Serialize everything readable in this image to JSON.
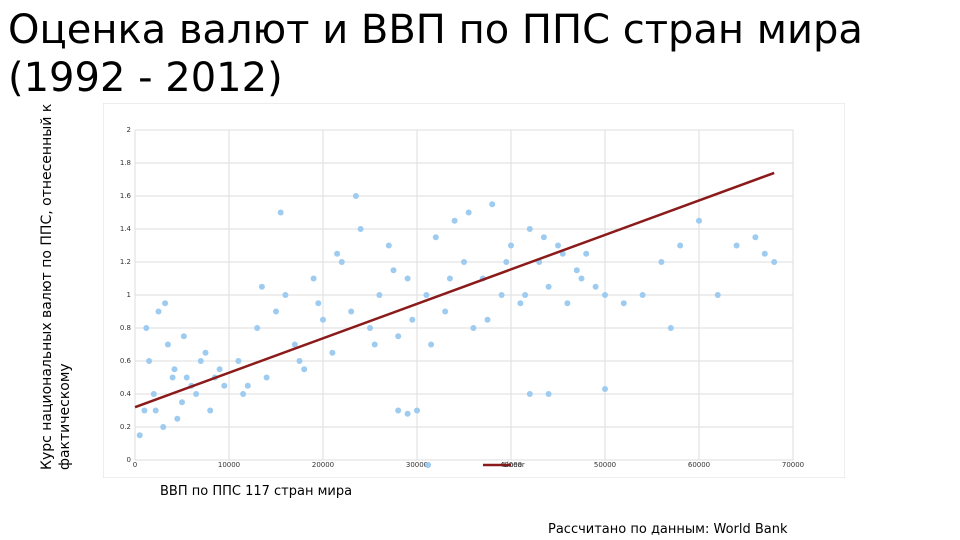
{
  "title": "Оценка валют и ВВП по ППС стран мира (1992 - 2012)",
  "source": "Рассчитано по данным: World Bank",
  "chart_data": {
    "type": "scatter",
    "x_label": "ВВП по ППС 117 стран мира",
    "y_label": "Курс национальных валют по ППС, отнесенный к фактическому",
    "xlim": [
      0,
      70000
    ],
    "xticks": [
      0,
      10000,
      20000,
      30000,
      40000,
      50000,
      60000,
      70000
    ],
    "ylim": [
      0,
      2
    ],
    "yticks": [
      0,
      0.2,
      0.4,
      0.6,
      0.8,
      1,
      1.2,
      1.4,
      1.6,
      1.8,
      2
    ],
    "grid": true,
    "legend": "bottom",
    "series": [
      {
        "color": "#9ecbf0",
        "x": [
          1000,
          2000,
          3000,
          1500,
          2500,
          4000,
          5000,
          6000,
          7000,
          8000,
          9000,
          500,
          1200,
          3500,
          4500,
          5500,
          6500,
          7500,
          8500,
          9500,
          2200,
          3200,
          4200,
          5200,
          11000,
          12000,
          13000,
          14000,
          15000,
          16000,
          17000,
          18000,
          19000,
          20000,
          21000,
          22000,
          23000,
          24000,
          25000,
          26000,
          27000,
          28000,
          29000,
          11500,
          13500,
          15500,
          17500,
          19500,
          21500,
          23500,
          25500,
          27500,
          29500,
          31000,
          32000,
          33000,
          34000,
          35000,
          36000,
          37000,
          38000,
          39000,
          40000,
          41000,
          42000,
          43000,
          44000,
          45000,
          46000,
          47000,
          48000,
          31500,
          33500,
          35500,
          37500,
          39500,
          41500,
          43500,
          45500,
          47500,
          49000,
          50000,
          52000,
          54000,
          56000,
          58000,
          60000,
          62000,
          64000,
          66000,
          67000,
          68000,
          28000,
          29000,
          30000,
          42000,
          44000,
          50000,
          57000
        ],
        "values": [
          0.3,
          0.4,
          0.2,
          0.6,
          0.9,
          0.5,
          0.35,
          0.45,
          0.6,
          0.3,
          0.55,
          0.15,
          0.8,
          0.7,
          0.25,
          0.5,
          0.4,
          0.65,
          0.5,
          0.45,
          0.3,
          0.95,
          0.55,
          0.75,
          0.6,
          0.45,
          0.8,
          0.5,
          0.9,
          1.0,
          0.7,
          0.55,
          1.1,
          0.85,
          0.65,
          1.2,
          0.9,
          1.4,
          0.8,
          1.0,
          1.3,
          0.75,
          1.1,
          0.4,
          1.05,
          1.5,
          0.6,
          0.95,
          1.25,
          1.6,
          0.7,
          1.15,
          0.85,
          1.0,
          1.35,
          0.9,
          1.45,
          1.2,
          0.8,
          1.1,
          1.55,
          1.0,
          1.3,
          0.95,
          1.4,
          1.2,
          1.05,
          1.3,
          0.95,
          1.15,
          1.25,
          0.7,
          1.1,
          1.5,
          0.85,
          1.2,
          1.0,
          1.35,
          1.25,
          1.1,
          1.05,
          1.0,
          0.95,
          1.0,
          1.2,
          1.3,
          1.45,
          1.0,
          1.3,
          1.35,
          1.25,
          1.2,
          0.3,
          0.28,
          0.3,
          0.4,
          0.4,
          0.43,
          0.8
        ]
      },
      {
        "name": "Linear",
        "color": "#8b1a1a",
        "x": [
          0,
          68000
        ],
        "values": [
          0.32,
          1.74
        ]
      }
    ]
  }
}
